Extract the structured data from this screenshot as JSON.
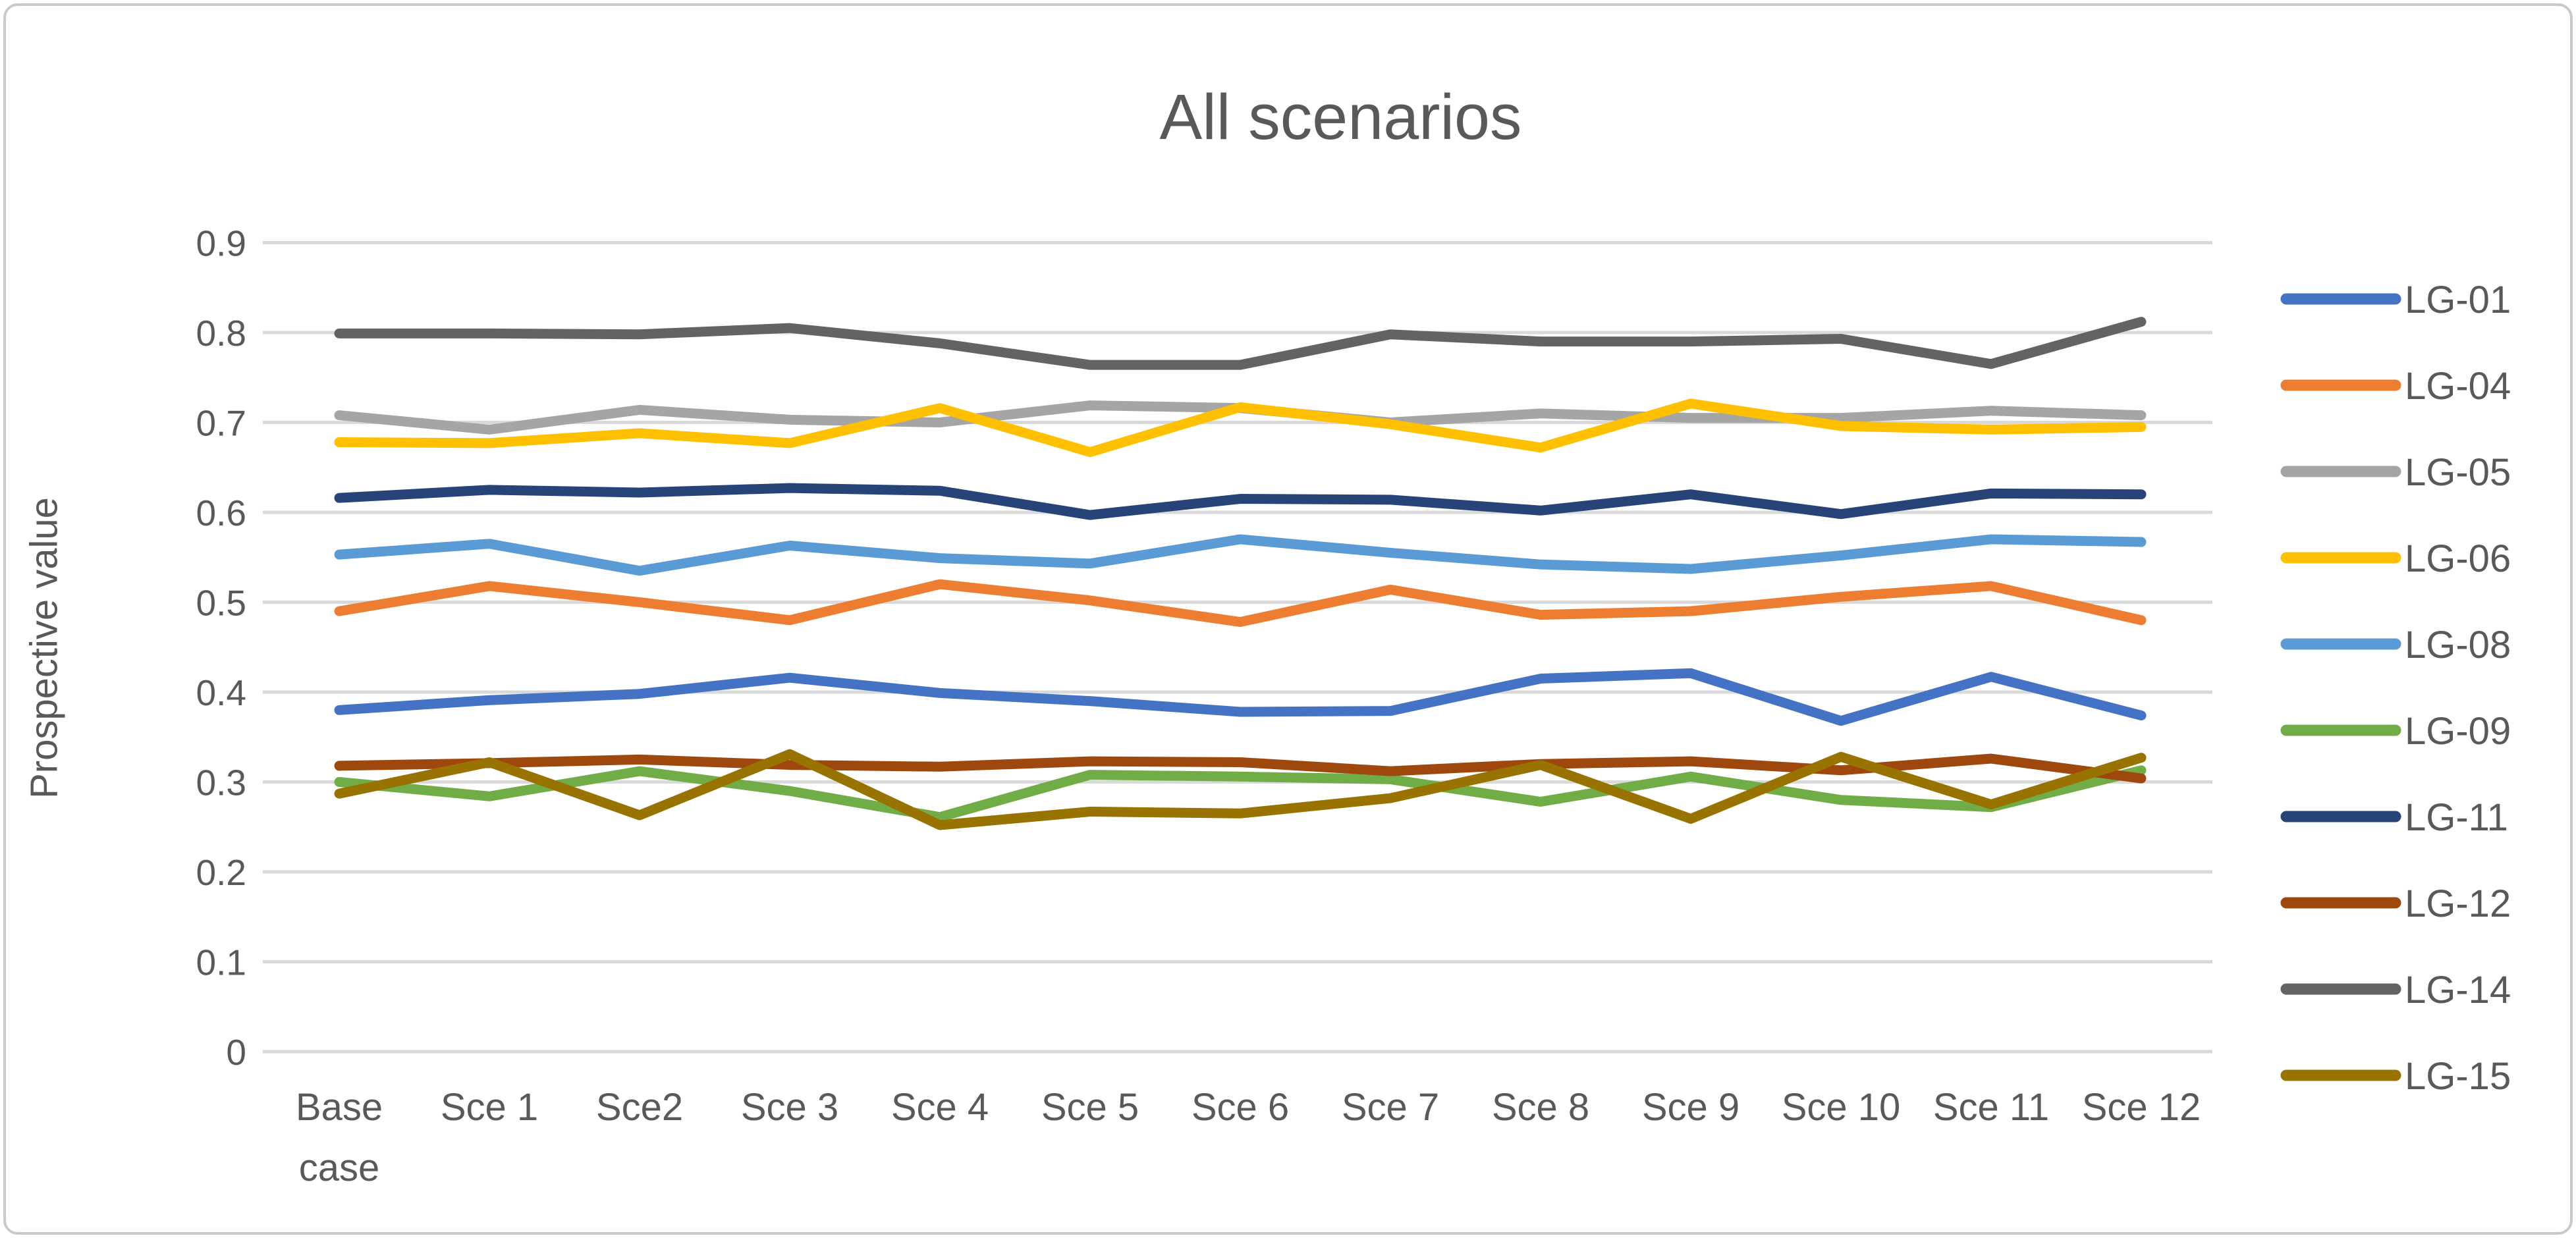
{
  "chart_data": {
    "type": "line",
    "title": "All scenarios",
    "xlabel": "",
    "ylabel": "Prospective value",
    "ylim": [
      0,
      0.9
    ],
    "yticks": [
      0,
      0.1,
      0.2,
      0.3,
      0.4,
      0.5,
      0.6,
      0.7,
      0.8,
      0.9
    ],
    "grid": true,
    "legend_position": "right",
    "text_color": "#595959",
    "gridline_color": "#d9d9d9",
    "categories": [
      "Base\ncase",
      "Sce 1",
      "Sce2",
      "Sce 3",
      "Sce 4",
      "Sce 5",
      "Sce 6",
      "Sce 7",
      "Sce 8",
      "Sce 9",
      "Sce 10",
      "Sce 11",
      "Sce 12"
    ],
    "series": [
      {
        "name": "LG-01",
        "color": "#4472C4",
        "values": [
          0.38,
          0.391,
          0.398,
          0.416,
          0.399,
          0.39,
          0.378,
          0.379,
          0.415,
          0.421,
          0.368,
          0.417,
          0.374
        ]
      },
      {
        "name": "LG-04",
        "color": "#ED7D31",
        "values": [
          0.49,
          0.518,
          0.5,
          0.48,
          0.52,
          0.502,
          0.478,
          0.514,
          0.486,
          0.49,
          0.506,
          0.518,
          0.48
        ]
      },
      {
        "name": "LG-05",
        "color": "#A5A5A5",
        "values": [
          0.708,
          0.692,
          0.714,
          0.703,
          0.7,
          0.719,
          0.716,
          0.7,
          0.71,
          0.705,
          0.705,
          0.713,
          0.708
        ]
      },
      {
        "name": "LG-06",
        "color": "#FFC000",
        "values": [
          0.678,
          0.677,
          0.688,
          0.677,
          0.716,
          0.667,
          0.717,
          0.698,
          0.672,
          0.721,
          0.696,
          0.692,
          0.695
        ]
      },
      {
        "name": "LG-08",
        "color": "#5B9BD5",
        "values": [
          0.553,
          0.565,
          0.535,
          0.563,
          0.549,
          0.543,
          0.57,
          0.555,
          0.542,
          0.537,
          0.552,
          0.57,
          0.567
        ]
      },
      {
        "name": "LG-09",
        "color": "#70AD47",
        "values": [
          0.3,
          0.284,
          0.312,
          0.29,
          0.261,
          0.308,
          0.306,
          0.303,
          0.278,
          0.306,
          0.28,
          0.272,
          0.313
        ]
      },
      {
        "name": "LG-11",
        "color": "#264478",
        "values": [
          0.616,
          0.625,
          0.622,
          0.627,
          0.624,
          0.597,
          0.615,
          0.614,
          0.602,
          0.62,
          0.598,
          0.621,
          0.62
        ]
      },
      {
        "name": "LG-12",
        "color": "#9E480E",
        "values": [
          0.318,
          0.321,
          0.325,
          0.319,
          0.317,
          0.323,
          0.322,
          0.312,
          0.32,
          0.323,
          0.313,
          0.326,
          0.304
        ]
      },
      {
        "name": "LG-14",
        "color": "#636363",
        "values": [
          0.799,
          0.799,
          0.798,
          0.805,
          0.788,
          0.764,
          0.764,
          0.798,
          0.79,
          0.79,
          0.793,
          0.765,
          0.812
        ]
      },
      {
        "name": "LG-15",
        "color": "#997300",
        "values": [
          0.287,
          0.322,
          0.263,
          0.331,
          0.252,
          0.267,
          0.265,
          0.282,
          0.319,
          0.259,
          0.328,
          0.275,
          0.327
        ]
      }
    ]
  }
}
